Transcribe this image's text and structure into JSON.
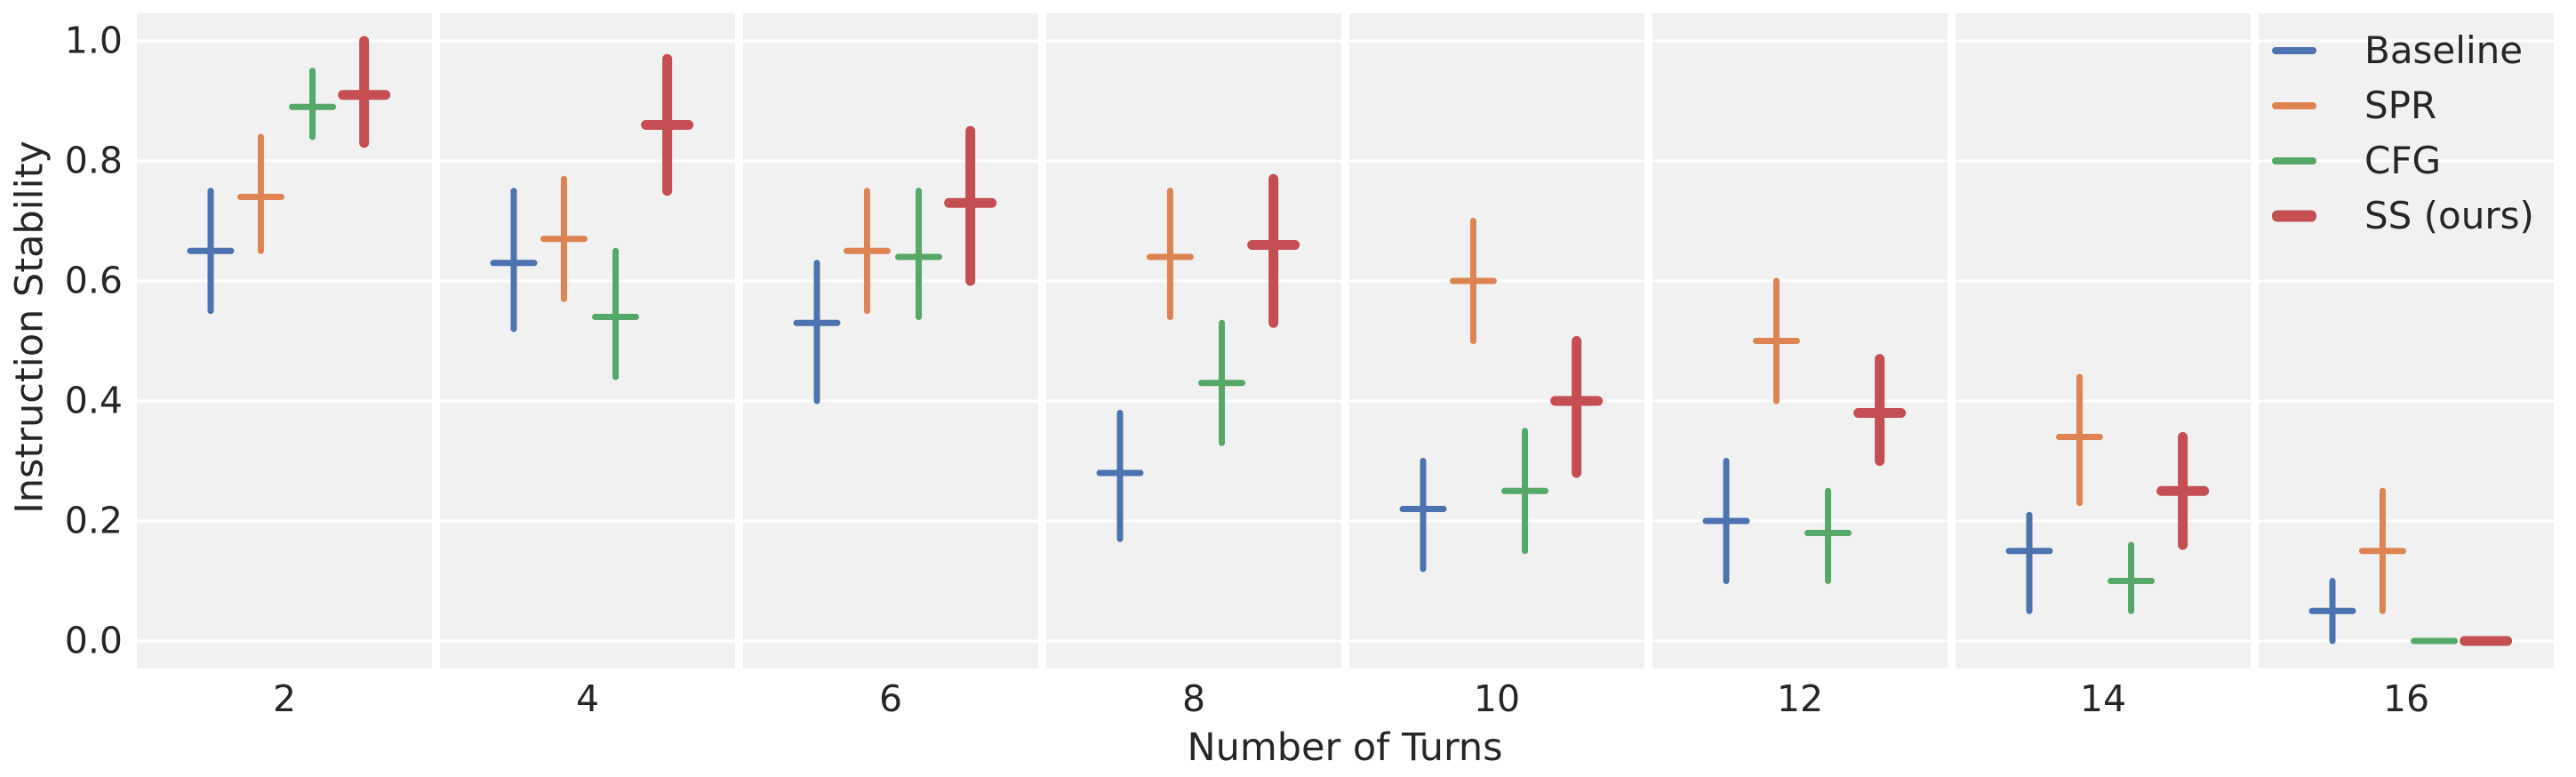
{
  "figure": {
    "ylabel": "Instruction Stability",
    "xlabel": "Number of Turns",
    "background_color": "#ffffff",
    "panel_background_color": "#f1f1f1",
    "gridline_color": "#ffffff",
    "text_color": "#262626",
    "ytick_labels": [
      "1.0",
      "0.8",
      "0.6",
      "0.4",
      "0.2",
      "0.0"
    ],
    "xtick_labels": [
      "2",
      "4",
      "6",
      "8",
      "10",
      "12",
      "14",
      "16"
    ]
  },
  "legend": {
    "position": "upper right",
    "entries": [
      {
        "label": "Baseline",
        "color": "#4C72B0",
        "emphasis": false
      },
      {
        "label": "SPR",
        "color": "#DD8452",
        "emphasis": false
      },
      {
        "label": "CFG",
        "color": "#55A868",
        "emphasis": false
      },
      {
        "label": "SS (ours)",
        "color": "#C44E52",
        "emphasis": true
      }
    ]
  },
  "chart_data": {
    "type": "pointplot_ci",
    "layout": "8 facet panels, one per Number-of-Turns value; point estimate drawn as horizontal tick with vertical confidence-interval bar",
    "categories": [
      2,
      4,
      6,
      8,
      10,
      12,
      14,
      16
    ],
    "xlabel": "Number of Turns",
    "ylabel": "Instruction Stability",
    "ylim": [
      0.0,
      1.0
    ],
    "yticks": [
      1.0,
      0.8,
      0.6,
      0.4,
      0.2,
      0.0
    ],
    "grid": true,
    "legend_position": "upper right",
    "series": [
      {
        "name": "Baseline",
        "color": "#4C72B0",
        "emphasis": false,
        "mean": [
          0.65,
          0.63,
          0.53,
          0.28,
          0.22,
          0.2,
          0.15,
          0.05
        ],
        "ci_low": [
          0.55,
          0.52,
          0.4,
          0.17,
          0.12,
          0.1,
          0.05,
          0.0
        ],
        "ci_high": [
          0.75,
          0.75,
          0.63,
          0.38,
          0.3,
          0.3,
          0.21,
          0.1
        ]
      },
      {
        "name": "SPR",
        "color": "#DD8452",
        "emphasis": false,
        "mean": [
          0.74,
          0.67,
          0.65,
          0.64,
          0.6,
          0.5,
          0.34,
          0.15
        ],
        "ci_low": [
          0.65,
          0.57,
          0.55,
          0.54,
          0.5,
          0.4,
          0.23,
          0.05
        ],
        "ci_high": [
          0.84,
          0.77,
          0.75,
          0.75,
          0.7,
          0.6,
          0.44,
          0.25
        ]
      },
      {
        "name": "CFG",
        "color": "#55A868",
        "emphasis": false,
        "mean": [
          0.89,
          0.54,
          0.64,
          0.43,
          0.25,
          0.18,
          0.1,
          0.0
        ],
        "ci_low": [
          0.84,
          0.44,
          0.54,
          0.33,
          0.15,
          0.1,
          0.05,
          0.0
        ],
        "ci_high": [
          0.95,
          0.65,
          0.75,
          0.53,
          0.35,
          0.25,
          0.16,
          0.0
        ]
      },
      {
        "name": "SS (ours)",
        "color": "#C44E52",
        "emphasis": true,
        "mean": [
          0.91,
          0.86,
          0.73,
          0.66,
          0.4,
          0.38,
          0.25,
          0.0
        ],
        "ci_low": [
          0.83,
          0.75,
          0.6,
          0.53,
          0.28,
          0.3,
          0.16,
          0.0
        ],
        "ci_high": [
          1.0,
          0.97,
          0.85,
          0.77,
          0.5,
          0.47,
          0.34,
          0.0
        ]
      }
    ]
  }
}
